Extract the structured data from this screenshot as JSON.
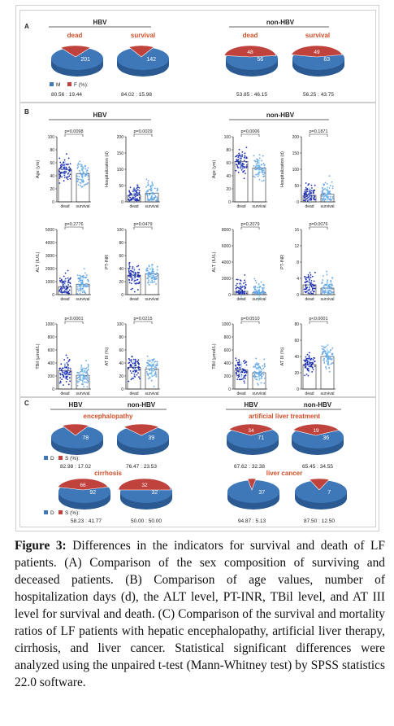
{
  "panel_letters": {
    "a": "A",
    "b": "B",
    "c": "C"
  },
  "panel_a": {
    "hbv_title": "HBV",
    "nonhbv_title": "non-HBV",
    "labels": {
      "dead": "dead",
      "survival": "survival"
    },
    "legend": {
      "m": "M",
      "f": "F (%):"
    },
    "pies": [
      {
        "label": "dead",
        "main_value": "201",
        "main_pct": 80.56,
        "ratio_text": "80.56 : 19.44"
      },
      {
        "label": "survival",
        "main_value": "142",
        "main_pct": 84.02,
        "ratio_text": "84.02 : 15.98"
      },
      {
        "label": "dead",
        "main_value": "56",
        "minor_value": "48",
        "main_pct": 53.85,
        "ratio_text": "53.85 : 46.15"
      },
      {
        "label": "survival",
        "main_value": "63",
        "minor_value": "49",
        "main_pct": 56.25,
        "ratio_text": "56.25 : 43.75"
      }
    ]
  },
  "panel_b": {
    "hbv_title": "HBV",
    "nonhbv_title": "non-HBV",
    "x_categories": [
      "dead",
      "survival"
    ],
    "plots": [
      {
        "ylabel": "Age (yrs)",
        "p": "p=0.0098",
        "yticks": [
          "0",
          "20",
          "40",
          "60",
          "80",
          "100"
        ],
        "means": [
          50,
          43
        ],
        "ymax": 100
      },
      {
        "ylabel": "Hospitalization (d)",
        "p": "p=0.0029",
        "yticks": [
          "0",
          "50",
          "100",
          "150",
          "200"
        ],
        "means": [
          20,
          27
        ],
        "ymax": 200
      },
      {
        "ylabel": "Age (yrs)",
        "p": "p=0.0006",
        "yticks": [
          "0",
          "20",
          "40",
          "60",
          "80",
          "100"
        ],
        "means": [
          62,
          52
        ],
        "ymax": 100
      },
      {
        "ylabel": "Hospitalization (d)",
        "p": "p=0.1871",
        "yticks": [
          "0",
          "50",
          "100",
          "150",
          "200"
        ],
        "means": [
          20,
          23
        ],
        "ymax": 200
      },
      {
        "ylabel": "ALT (IU/L)",
        "p": "p=0.2776",
        "yticks": [
          "0",
          "1000",
          "2000",
          "3000",
          "4000",
          "5000"
        ],
        "means": [
          600,
          800
        ],
        "ymax": 5000
      },
      {
        "ylabel": "PT-INR",
        "p": "p=0.0479",
        "yticks": [
          "0",
          "20",
          "40",
          "60",
          "80",
          "100"
        ],
        "means": [
          30,
          32
        ],
        "ymax": 100
      },
      {
        "ylabel": "ALT (IU/L)",
        "p": "p=0.2079",
        "yticks": [
          "0",
          "2000",
          "4000",
          "6000",
          "8000"
        ],
        "means": [
          400,
          250
        ],
        "ymax": 8000
      },
      {
        "ylabel": "PT-INR",
        "p": "p=0.0076",
        "yticks": [
          "0",
          "4",
          "8",
          "12",
          "16"
        ],
        "means": [
          2.4,
          1.6
        ],
        "ymax": 16
      },
      {
        "ylabel": "TBil (µmol/L)",
        "p": "p<0.0001",
        "yticks": [
          "0",
          "200",
          "400",
          "600",
          "800",
          "1000"
        ],
        "means": [
          280,
          210
        ],
        "ymax": 1000
      },
      {
        "ylabel": "AT III (%)",
        "p": "p=0.0215",
        "yticks": [
          "0",
          "20",
          "40",
          "60",
          "80",
          "100"
        ],
        "means": [
          33,
          31
        ],
        "ymax": 100
      },
      {
        "ylabel": "TBil (µmol/L)",
        "p": "p=0.0510",
        "yticks": [
          "0",
          "200",
          "400",
          "600",
          "800",
          "1000"
        ],
        "means": [
          290,
          250
        ],
        "ymax": 1000
      },
      {
        "ylabel": "AT III (%)",
        "p": "p<0.0001",
        "yticks": [
          "0",
          "20",
          "40",
          "60",
          "80"
        ],
        "means": [
          30,
          40
        ],
        "ymax": 80
      }
    ]
  },
  "panel_c": {
    "col_heads": [
      "HBV",
      "non-HBV",
      "HBV",
      "non-HBV"
    ],
    "groups": [
      {
        "title": "encephalopathy",
        "legend_d": "D",
        "legend_s": "S (%):",
        "pies": [
          {
            "main_value": "78",
            "main_pct": 82.98,
            "ratio_text": "82.98 : 17.02"
          },
          {
            "main_value": "39",
            "main_pct": 76.47,
            "ratio_text": "76.47 : 23.53"
          }
        ]
      },
      {
        "title": "artificial liver treatment",
        "legend_d": "",
        "legend_s": "",
        "pies": [
          {
            "main_value": "71",
            "minor_value": "34",
            "main_pct": 67.62,
            "ratio_text": "67.62 : 32.38"
          },
          {
            "main_value": "36",
            "minor_value": "19",
            "main_pct": 65.45,
            "ratio_text": "65.45 : 34.55"
          }
        ]
      },
      {
        "title": "cirrhosis",
        "legend_d": "D",
        "legend_s": "S (%):",
        "pies": [
          {
            "main_value": "92",
            "minor_value": "66",
            "main_pct": 58.23,
            "ratio_text": "58.23 : 41.77"
          },
          {
            "main_value": "32",
            "minor_value": "32",
            "main_pct": 50.0,
            "ratio_text": "50.00 : 50.00"
          }
        ]
      },
      {
        "title": "liver cancer",
        "legend_d": "",
        "legend_s": "",
        "pies": [
          {
            "main_value": "37",
            "main_pct": 94.87,
            "ratio_text": "94.87 : 5.13"
          },
          {
            "main_value": "7",
            "main_pct": 87.5,
            "ratio_text": "87.50 : 12.50"
          }
        ]
      }
    ]
  },
  "caption": {
    "label": "Figure 3:",
    "text": " Differences in the indicators for survival and death of LF patients. (A) Comparison of the sex composition of surviving and deceased patients. (B) Comparison of age values, number of hospitalization days (d), the ALT level, PT-INR, TBil level, and AT III level for survival and death. (C) Comparison of the survival and mortality ratios of LF patients with hepatic encephalopathy, artificial liver therapy, cirrhosis, and liver cancer. Statistical significant differences were analyzed using the unpaired t-test (Mann-Whitney test) by SPSS statistics 22.0 software."
  },
  "colors": {
    "blue": "#3f78b8",
    "blue_dark": "#2b5a92",
    "red": "#c0423d",
    "red_dark": "#8f2b27",
    "title_red": "#d2502a",
    "dots_dark": "#1f2fb0",
    "dots_light": "#6aa8e6"
  }
}
